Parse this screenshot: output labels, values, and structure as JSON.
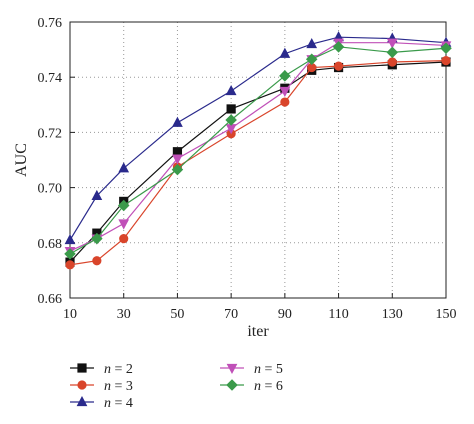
{
  "chart_data": {
    "type": "line",
    "xlabel": "iter",
    "ylabel": "AUC",
    "x": [
      10,
      20,
      30,
      50,
      70,
      90,
      100,
      110,
      130,
      150
    ],
    "xticks": [
      10,
      30,
      50,
      70,
      90,
      110,
      130,
      150
    ],
    "xlim": [
      10,
      150
    ],
    "yticks": [
      0.66,
      0.68,
      0.7,
      0.72,
      0.74,
      0.76
    ],
    "ytick_labels": [
      "0.66",
      "0.68",
      "0.70",
      "0.72",
      "0.74",
      "0.76"
    ],
    "ylim": [
      0.66,
      0.76
    ],
    "grid": true,
    "legend_position": "bottom",
    "series": [
      {
        "name": "n = 2",
        "var": "n",
        "rest": " = 2",
        "color": "#111111",
        "marker": "square",
        "values": [
          0.673,
          0.6835,
          0.695,
          0.713,
          0.7285,
          0.736,
          0.7425,
          0.7435,
          0.7445,
          0.7455
        ]
      },
      {
        "name": "n = 3",
        "var": "n",
        "rest": " = 3",
        "color": "#d9452b",
        "marker": "circle",
        "values": [
          0.672,
          0.6735,
          0.6815,
          0.7075,
          0.7195,
          0.731,
          0.7435,
          0.744,
          0.7455,
          0.746
        ]
      },
      {
        "name": "n = 4",
        "var": "n",
        "rest": " = 4",
        "color": "#2a2a8c",
        "marker": "triangle-up",
        "values": [
          0.681,
          0.697,
          0.707,
          0.7235,
          0.735,
          0.7485,
          0.752,
          0.7545,
          0.754,
          0.7525
        ]
      },
      {
        "name": "n = 5",
        "var": "n",
        "rest": " = 5",
        "color": "#c050b8",
        "marker": "triangle-down",
        "values": [
          0.677,
          0.6815,
          0.687,
          0.7105,
          0.7215,
          0.735,
          0.7465,
          0.7525,
          0.7525,
          0.7515
        ]
      },
      {
        "name": "n = 6",
        "var": "n",
        "rest": " = 6",
        "color": "#3a9a4a",
        "marker": "diamond",
        "values": [
          0.676,
          0.6815,
          0.6935,
          0.7065,
          0.7245,
          0.7405,
          0.7465,
          0.751,
          0.749,
          0.7505
        ]
      }
    ]
  }
}
